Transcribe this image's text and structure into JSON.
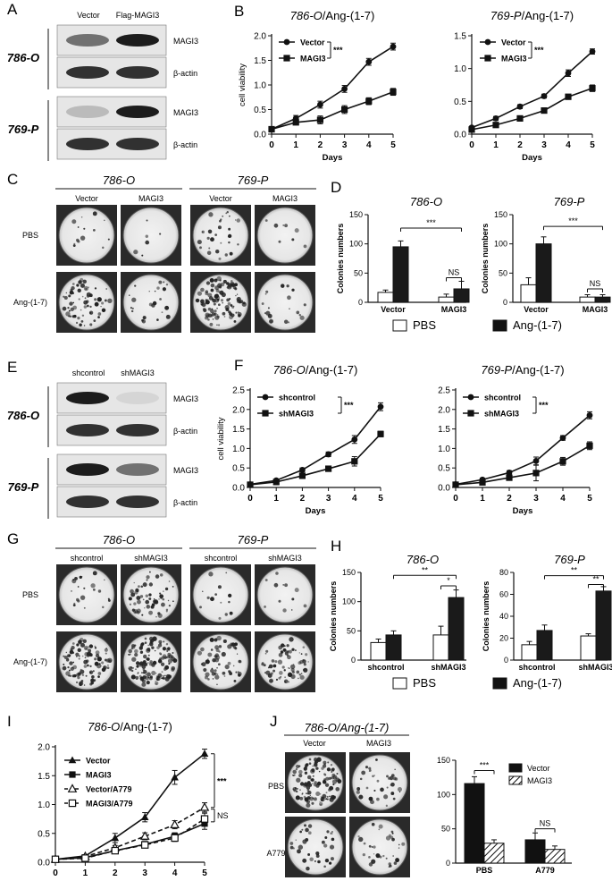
{
  "panels": {
    "A": {
      "label": "A",
      "lanes": [
        "Vector",
        "Flag-MAGI3"
      ],
      "rows": [
        {
          "cell": "786-O",
          "bands": [
            "MAGI3",
            "β-actin"
          ]
        },
        {
          "cell": "769-P",
          "bands": [
            "MAGI3",
            "β-actin"
          ]
        }
      ]
    },
    "C": {
      "label": "C",
      "cells": [
        "786-O",
        "769-P"
      ],
      "cols": [
        "Vector",
        "MAGI3"
      ],
      "rows": [
        "PBS",
        "Ang-(1-7)"
      ]
    },
    "E": {
      "label": "E",
      "lanes": [
        "shcontrol",
        "shMAGI3"
      ],
      "rows": [
        {
          "cell": "786-O",
          "bands": [
            "MAGI3",
            "β-actin"
          ]
        },
        {
          "cell": "769-P",
          "bands": [
            "MAGI3",
            "β-actin"
          ]
        }
      ]
    },
    "G": {
      "label": "G",
      "cells": [
        "786-O",
        "769-P"
      ],
      "cols": [
        "shcontrol",
        "shMAGI3"
      ],
      "rows": [
        "PBS",
        "Ang-(1-7)"
      ]
    },
    "J": {
      "label": "J",
      "header": "786-O/Ang-(1-7)",
      "cols": [
        "Vector",
        "MAGI3"
      ],
      "rows": [
        "PBS",
        "A779"
      ]
    }
  },
  "legend_DH": {
    "items": [
      "PBS",
      "Ang-(1-7)"
    ]
  },
  "chart_data": [
    {
      "id": "B1",
      "panel": "B",
      "type": "line",
      "title_cell": "786-O",
      "title_rest": "/Ang-(1-7)",
      "xlabel": "Days",
      "ylabel": "cell viability",
      "x": [
        0,
        1,
        2,
        3,
        4,
        5
      ],
      "ylim": [
        0,
        2.0
      ],
      "yticks": [
        "0.0",
        "0.5",
        "1.0",
        "1.5",
        "2.0"
      ],
      "sig": "***",
      "series": [
        {
          "name": "Vector",
          "marker": "circle",
          "values": [
            0.1,
            0.32,
            0.6,
            0.92,
            1.47,
            1.78
          ],
          "err": [
            0.03,
            0.06,
            0.07,
            0.07,
            0.07,
            0.07
          ]
        },
        {
          "name": "MAGI3",
          "marker": "square",
          "values": [
            0.1,
            0.24,
            0.29,
            0.5,
            0.67,
            0.86
          ],
          "err": [
            0.03,
            0.05,
            0.08,
            0.08,
            0.07,
            0.07
          ]
        }
      ]
    },
    {
      "id": "B2",
      "panel": "",
      "type": "line",
      "title_cell": "769-P",
      "title_rest": "/Ang-(1-7)",
      "xlabel": "Days",
      "ylabel": "",
      "x": [
        0,
        1,
        2,
        3,
        4,
        5
      ],
      "ylim": [
        0,
        1.5
      ],
      "yticks": [
        "0.0",
        "0.5",
        "1.0",
        "1.5"
      ],
      "sig": "***",
      "series": [
        {
          "name": "Vector",
          "marker": "circle",
          "values": [
            0.1,
            0.24,
            0.42,
            0.58,
            0.93,
            1.26
          ],
          "err": [
            0.02,
            0.03,
            0.03,
            0.03,
            0.05,
            0.04
          ]
        },
        {
          "name": "MAGI3",
          "marker": "square",
          "values": [
            0.07,
            0.14,
            0.24,
            0.36,
            0.57,
            0.7
          ],
          "err": [
            0.02,
            0.03,
            0.03,
            0.03,
            0.03,
            0.05
          ]
        }
      ]
    },
    {
      "id": "F1",
      "panel": "F",
      "type": "line",
      "title_cell": "786-O",
      "title_rest": "/Ang-(1-7)",
      "xlabel": "Days",
      "ylabel": "cell viability",
      "x": [
        0,
        1,
        2,
        3,
        4,
        5
      ],
      "ylim": [
        0,
        2.5
      ],
      "yticks": [
        "0.0",
        "0.5",
        "1.0",
        "1.5",
        "2.0",
        "2.5"
      ],
      "sig": "***",
      "series": [
        {
          "name": "shcontrol",
          "marker": "circle",
          "values": [
            0.08,
            0.18,
            0.45,
            0.85,
            1.23,
            2.07
          ],
          "err": [
            0.03,
            0.03,
            0.05,
            0.06,
            0.1,
            0.1
          ]
        },
        {
          "name": "shMAGI3",
          "marker": "square",
          "values": [
            0.07,
            0.14,
            0.3,
            0.48,
            0.67,
            1.37
          ],
          "err": [
            0.03,
            0.03,
            0.05,
            0.06,
            0.12,
            0.07
          ]
        }
      ]
    },
    {
      "id": "F2",
      "panel": "",
      "type": "line",
      "title_cell": "769-P",
      "title_rest": "/Ang-(1-7)",
      "xlabel": "Days",
      "ylabel": "",
      "x": [
        0,
        1,
        2,
        3,
        4,
        5
      ],
      "ylim": [
        0,
        2.5
      ],
      "yticks": [
        "0.0",
        "0.5",
        "1.0",
        "1.5",
        "2.0",
        "2.5"
      ],
      "sig": "***",
      "series": [
        {
          "name": "shcontrol",
          "marker": "circle",
          "values": [
            0.08,
            0.2,
            0.38,
            0.68,
            1.27,
            1.85
          ],
          "err": [
            0.03,
            0.04,
            0.05,
            0.1,
            0.06,
            0.09
          ]
        },
        {
          "name": "shMAGI3",
          "marker": "square",
          "values": [
            0.07,
            0.13,
            0.25,
            0.37,
            0.67,
            1.07
          ],
          "err": [
            0.02,
            0.03,
            0.05,
            0.2,
            0.1,
            0.1
          ]
        }
      ]
    },
    {
      "id": "D1",
      "panel": "D",
      "type": "bar",
      "title": "786-O",
      "ylabel": "Colonies numbers",
      "categories": [
        "Vector",
        "MAGI3"
      ],
      "ylim": [
        0,
        150
      ],
      "yticks": [
        "0",
        "50",
        "100",
        "150"
      ],
      "series": [
        {
          "name": "PBS",
          "values": [
            17,
            9
          ],
          "err": [
            4,
            5
          ]
        },
        {
          "name": "Ang-(1-7)",
          "values": [
            95,
            23
          ],
          "err": [
            10,
            13
          ]
        }
      ],
      "annotations": [
        {
          "text": "***",
          "from": [
            0,
            1
          ],
          "to": [
            1,
            1
          ],
          "y": 127
        },
        {
          "text": "NS",
          "from": [
            1,
            0
          ],
          "to": [
            1,
            1
          ],
          "y": 42
        }
      ]
    },
    {
      "id": "D2",
      "panel": "",
      "type": "bar",
      "title": "769-P",
      "ylabel": "Colonies numbers",
      "categories": [
        "Vector",
        "MAGI3"
      ],
      "ylim": [
        0,
        150
      ],
      "yticks": [
        "0",
        "50",
        "100",
        "150"
      ],
      "series": [
        {
          "name": "PBS",
          "values": [
            30,
            9
          ],
          "err": [
            12,
            4
          ]
        },
        {
          "name": "Ang-(1-7)",
          "values": [
            100,
            9
          ],
          "err": [
            12,
            4
          ]
        }
      ],
      "annotations": [
        {
          "text": "***",
          "from": [
            0,
            1
          ],
          "to": [
            1,
            1
          ],
          "y": 130
        },
        {
          "text": "NS",
          "from": [
            1,
            0
          ],
          "to": [
            1,
            1
          ],
          "y": 23
        }
      ]
    },
    {
      "id": "H1",
      "panel": "H",
      "type": "bar",
      "title": "786-O",
      "ylabel": "Colonies numbers",
      "categories": [
        "shcontrol",
        "shMAGI3"
      ],
      "ylim": [
        0,
        150
      ],
      "yticks": [
        "0",
        "50",
        "100",
        "150"
      ],
      "series": [
        {
          "name": "PBS",
          "values": [
            30,
            43
          ],
          "err": [
            6,
            15
          ]
        },
        {
          "name": "Ang-(1-7)",
          "values": [
            43,
            107
          ],
          "err": [
            7,
            13
          ]
        }
      ],
      "annotations": [
        {
          "text": "**",
          "from": [
            0,
            1
          ],
          "to": [
            1,
            1
          ],
          "y": 145
        },
        {
          "text": "*",
          "from": [
            1,
            0
          ],
          "to": [
            1,
            1
          ],
          "y": 127
        }
      ]
    },
    {
      "id": "H2",
      "panel": "",
      "type": "bar",
      "title": "769-P",
      "ylabel": "Colonies numbers",
      "categories": [
        "shcontrol",
        "shMAGI3"
      ],
      "ylim": [
        0,
        80
      ],
      "yticks": [
        "0",
        "20",
        "40",
        "60",
        "80"
      ],
      "series": [
        {
          "name": "PBS",
          "values": [
            14,
            22
          ],
          "err": [
            3,
            2
          ]
        },
        {
          "name": "Ang-(1-7)",
          "values": [
            27,
            63
          ],
          "err": [
            5,
            4
          ]
        }
      ],
      "annotations": [
        {
          "text": "**",
          "from": [
            0,
            1
          ],
          "to": [
            1,
            1
          ],
          "y": 77
        },
        {
          "text": "**",
          "from": [
            1,
            0
          ],
          "to": [
            1,
            1
          ],
          "y": 69
        }
      ]
    },
    {
      "id": "I",
      "panel": "I",
      "type": "line",
      "title_cell": "786-O",
      "title_rest": "/Ang-(1-7)",
      "xlabel": "",
      "ylabel": "",
      "x": [
        0,
        1,
        2,
        3,
        4,
        5
      ],
      "ylim": [
        0,
        2.0
      ],
      "yticks": [
        "0.0",
        "0.5",
        "1.0",
        "1.5",
        "2.0"
      ],
      "series": [
        {
          "name": "Vector",
          "marker": "triangle",
          "dashed": false,
          "values": [
            0.05,
            0.11,
            0.42,
            0.78,
            1.47,
            1.88
          ],
          "err": [
            0.02,
            0.02,
            0.08,
            0.08,
            0.12,
            0.08
          ]
        },
        {
          "name": "MAGI3",
          "marker": "square",
          "dashed": false,
          "values": [
            0.05,
            0.08,
            0.2,
            0.31,
            0.45,
            0.67
          ],
          "err": [
            0.02,
            0.02,
            0.04,
            0.05,
            0.06,
            0.1
          ]
        },
        {
          "name": "Vector/A779",
          "marker": "triangle-open",
          "dashed": true,
          "values": [
            0.05,
            0.1,
            0.25,
            0.45,
            0.65,
            0.95
          ],
          "err": [
            0.02,
            0.02,
            0.04,
            0.06,
            0.07,
            0.08
          ]
        },
        {
          "name": "MAGI3/A779",
          "marker": "square-open",
          "dashed": true,
          "values": [
            0.05,
            0.07,
            0.2,
            0.3,
            0.42,
            0.75
          ],
          "err": [
            0.02,
            0.02,
            0.04,
            0.05,
            0.06,
            0.1
          ]
        }
      ],
      "annotations": [
        "***",
        "NS"
      ]
    },
    {
      "id": "J",
      "panel": "",
      "type": "bar",
      "ylabel": "",
      "categories": [
        "PBS",
        "A779"
      ],
      "ylim": [
        0,
        150
      ],
      "yticks": [
        "0",
        "50",
        "100",
        "150"
      ],
      "series": [
        {
          "name": "Vector",
          "pattern": "solid",
          "values": [
            116,
            34
          ],
          "err": [
            10,
            10
          ]
        },
        {
          "name": "MAGI3",
          "pattern": "hatch",
          "values": [
            29,
            20
          ],
          "err": [
            5,
            5
          ]
        }
      ],
      "annotations": [
        {
          "text": "***",
          "from": [
            0,
            0
          ],
          "to": [
            0,
            1
          ],
          "y": 135
        },
        {
          "text": "NS",
          "from": [
            1,
            0
          ],
          "to": [
            1,
            1
          ],
          "y": 50
        }
      ]
    }
  ]
}
